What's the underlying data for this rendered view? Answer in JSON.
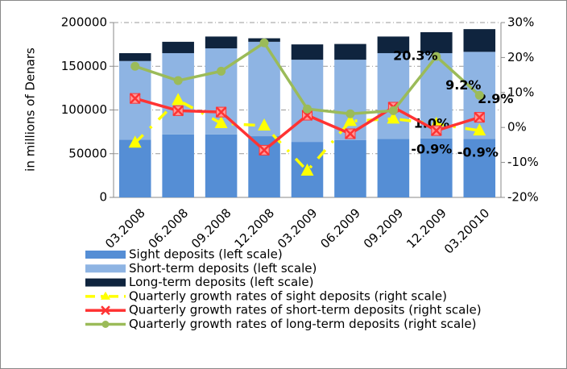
{
  "chart_data": {
    "type": "bar",
    "y_label": "in millions of Denars",
    "categories": [
      "03.2008",
      "06.2008",
      "09.2008",
      "12.2008",
      "03.2009",
      "06.2009",
      "09.2009",
      "12.2009",
      "03.20010"
    ],
    "ylim": [
      0,
      200000
    ],
    "yticks": [
      0,
      50000,
      100000,
      150000,
      200000
    ],
    "y2lim": [
      -20,
      30
    ],
    "y2ticks": [
      {
        "value": -20,
        "label": "-20%"
      },
      {
        "value": -10,
        "label": "-10%"
      },
      {
        "value": 0,
        "label": "0%"
      },
      {
        "value": 10,
        "label": "10%"
      },
      {
        "value": 20,
        "label": "20%"
      },
      {
        "value": 30,
        "label": "30%"
      }
    ],
    "grid": true,
    "series": [
      {
        "name": "Sight deposits (left scale)",
        "type": "bar",
        "color": "#558ed5",
        "values": [
          66000,
          72000,
          72000,
          70000,
          63500,
          65500,
          67000,
          67500,
          67000
        ]
      },
      {
        "name": "Short-term deposits (left scale)",
        "type": "bar",
        "color": "#8eb4e3",
        "values": [
          90000,
          93000,
          98500,
          108000,
          94000,
          92000,
          98000,
          97500,
          99500
        ]
      },
      {
        "name": "Long-term deposits (left scale)",
        "type": "bar",
        "color": "#0f243e",
        "values": [
          9000,
          13000,
          13500,
          4000,
          17500,
          18000,
          19000,
          24000,
          26000
        ]
      },
      {
        "name": "Quarterly growth rates of sight deposits (right scale)",
        "type": "line",
        "axis": "y2",
        "color": "#ffff00",
        "marker": "triangle",
        "dashed": true,
        "values": [
          -4.4,
          7.8,
          1.2,
          0.5,
          -12.4,
          1.8,
          2.5,
          1.0,
          -0.9
        ],
        "value_labels": [
          null,
          null,
          null,
          null,
          null,
          null,
          null,
          "1.0%",
          "-0.9%"
        ]
      },
      {
        "name": "Quarterly growth rates of short-term deposits (right scale)",
        "type": "line",
        "axis": "y2",
        "color": "#ff3333",
        "marker": "x",
        "values": [
          8.3,
          4.8,
          4.4,
          -6.5,
          3.5,
          -1.8,
          5.8,
          -0.9,
          2.9
        ],
        "value_labels": [
          null,
          null,
          null,
          null,
          null,
          null,
          null,
          "-0.9%",
          "2.9%"
        ]
      },
      {
        "name": "Quarterly growth rates of long-term deposits (right scale)",
        "type": "line",
        "axis": "y2",
        "color": "#9bbb59",
        "marker": "circle",
        "values": [
          17.5,
          13.4,
          16.1,
          24.2,
          5.3,
          3.9,
          4.8,
          20.3,
          9.2
        ],
        "value_labels": [
          null,
          null,
          null,
          null,
          null,
          null,
          null,
          "20.3%",
          "9.2%"
        ]
      }
    ]
  }
}
